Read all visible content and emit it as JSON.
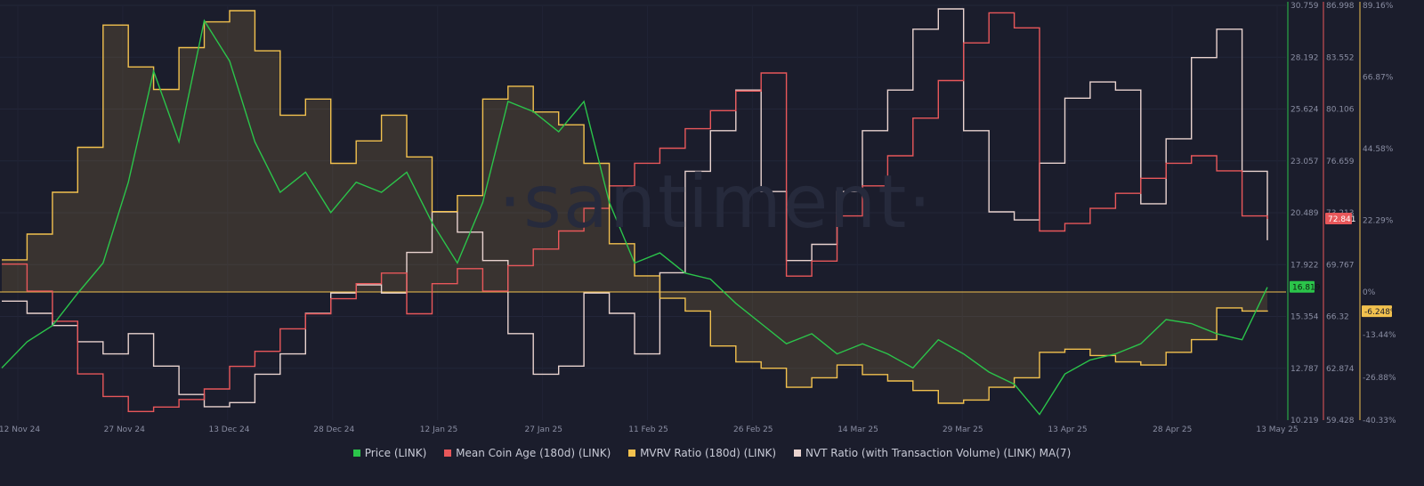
{
  "watermark": "·santiment·",
  "chart_data": {
    "type": "line",
    "x_ticks": [
      "12 Nov 24",
      "27 Nov 24",
      "13 Dec 24",
      "28 Dec 24",
      "12 Jan 25",
      "27 Jan 25",
      "11 Feb 25",
      "26 Feb 25",
      "14 Mar 25",
      "29 Mar 25",
      "13 Apr 25",
      "28 Apr 25",
      "13 May 25"
    ],
    "axes": [
      {
        "name": "Price (LINK)",
        "color": "#2bc44a",
        "ticks": [
          "30.759",
          "28.192",
          "25.624",
          "23.057",
          "20.489",
          "17.922",
          "15.354",
          "12.787",
          "10.219"
        ],
        "range": [
          10.219,
          30.759
        ]
      },
      {
        "name": "Mean Coin Age (180d) (LINK)",
        "color": "#e8575a",
        "ticks": [
          "86.998",
          "83.552",
          "80.106",
          "76.659",
          "73.213",
          "69.767",
          "66.32",
          "62.874",
          "59.428"
        ],
        "range": [
          59.428,
          86.998
        ]
      },
      {
        "name": "MVRV Ratio (180d) (LINK)",
        "color": "#f2c14e",
        "ticks": [
          "89.16%",
          "66.87%",
          "44.58%",
          "22.29%",
          "0%",
          "-13.44%",
          "-26.88%",
          "-40.33%"
        ],
        "range": [
          -40.33,
          89.16
        ]
      }
    ],
    "badges": {
      "price": "16.819",
      "mean_coin_age": "72.841",
      "mvrv": "-6.248%"
    },
    "series": [
      {
        "name": "Price (LINK)",
        "color": "#2bc44a",
        "values": [
          12.8,
          14.1,
          14.9,
          16.5,
          18.0,
          22.0,
          27.5,
          24.0,
          30.0,
          28.0,
          24.0,
          21.5,
          22.5,
          20.5,
          22.0,
          21.5,
          22.5,
          20.0,
          18.0,
          21.0,
          26.0,
          25.5,
          24.5,
          26.0,
          21.0,
          18.0,
          18.5,
          17.5,
          17.2,
          16.0,
          15.0,
          14.0,
          14.5,
          13.5,
          14.0,
          13.5,
          12.8,
          14.2,
          13.5,
          12.6,
          12.0,
          10.5,
          12.5,
          13.2,
          13.5,
          14.0,
          15.2,
          15.0,
          14.5,
          14.2,
          16.8
        ]
      },
      {
        "name": "Mean Coin Age (180d) (LINK)",
        "color": "#e8575a",
        "values": [
          69.8,
          68.0,
          66.0,
          62.5,
          61.0,
          60.0,
          60.3,
          60.8,
          61.5,
          63.0,
          64.0,
          65.5,
          66.5,
          67.5,
          68.5,
          69.2,
          66.5,
          68.5,
          69.5,
          68.0,
          69.7,
          70.8,
          72.0,
          73.5,
          75.0,
          76.5,
          77.5,
          78.8,
          80.0,
          81.3,
          82.5,
          69.0,
          70.0,
          73.0,
          75.0,
          77.0,
          79.5,
          82.0,
          84.5,
          86.5,
          85.5,
          72.0,
          72.5,
          73.5,
          74.5,
          75.5,
          76.5,
          77.0,
          76.0,
          73.0,
          72.8
        ]
      },
      {
        "name": "MVRV Ratio (180d) (LINK)",
        "color": "#f2c14e",
        "values": [
          10.0,
          18.0,
          31.0,
          45.0,
          83.0,
          70.0,
          63.0,
          76.0,
          84.0,
          87.5,
          75.0,
          55.0,
          60.0,
          40.0,
          47.0,
          55.0,
          42.0,
          25.0,
          30.0,
          60.0,
          64.0,
          56.0,
          52.0,
          40.0,
          15.0,
          5.0,
          -2.0,
          -6.0,
          -17.0,
          -22.0,
          -24.0,
          -30.0,
          -27.0,
          -23.0,
          -26.0,
          -28.0,
          -31.0,
          -35.0,
          -34.0,
          -30.0,
          -27.0,
          -19.0,
          -18.0,
          -20.0,
          -22.0,
          -23.0,
          -19.0,
          -15.0,
          -5.0,
          -6.0,
          -6.2
        ]
      },
      {
        "name": "NVT Ratio (with Transaction Volume) (LINK) MA(7)",
        "color": "#e9d3cf",
        "values": [
          0.28,
          0.25,
          0.22,
          0.18,
          0.15,
          0.2,
          0.12,
          0.05,
          0.02,
          0.03,
          0.1,
          0.15,
          0.25,
          0.3,
          0.32,
          0.3,
          0.4,
          0.5,
          0.45,
          0.38,
          0.2,
          0.1,
          0.12,
          0.3,
          0.25,
          0.15,
          0.35,
          0.6,
          0.7,
          0.8,
          0.55,
          0.38,
          0.42,
          0.55,
          0.7,
          0.8,
          0.95,
          1.0,
          0.7,
          0.5,
          0.48,
          0.62,
          0.78,
          0.82,
          0.8,
          0.52,
          0.68,
          0.88,
          0.95,
          0.6,
          0.43
        ]
      }
    ]
  },
  "legend": [
    {
      "label": "Price (LINK)",
      "color": "#2bc44a"
    },
    {
      "label": "Mean Coin Age (180d) (LINK)",
      "color": "#e8575a"
    },
    {
      "label": "MVRV Ratio (180d) (LINK)",
      "color": "#f2c14e"
    },
    {
      "label": "NVT Ratio (with Transaction Volume) (LINK) MA(7)",
      "color": "#e9d3cf"
    }
  ]
}
